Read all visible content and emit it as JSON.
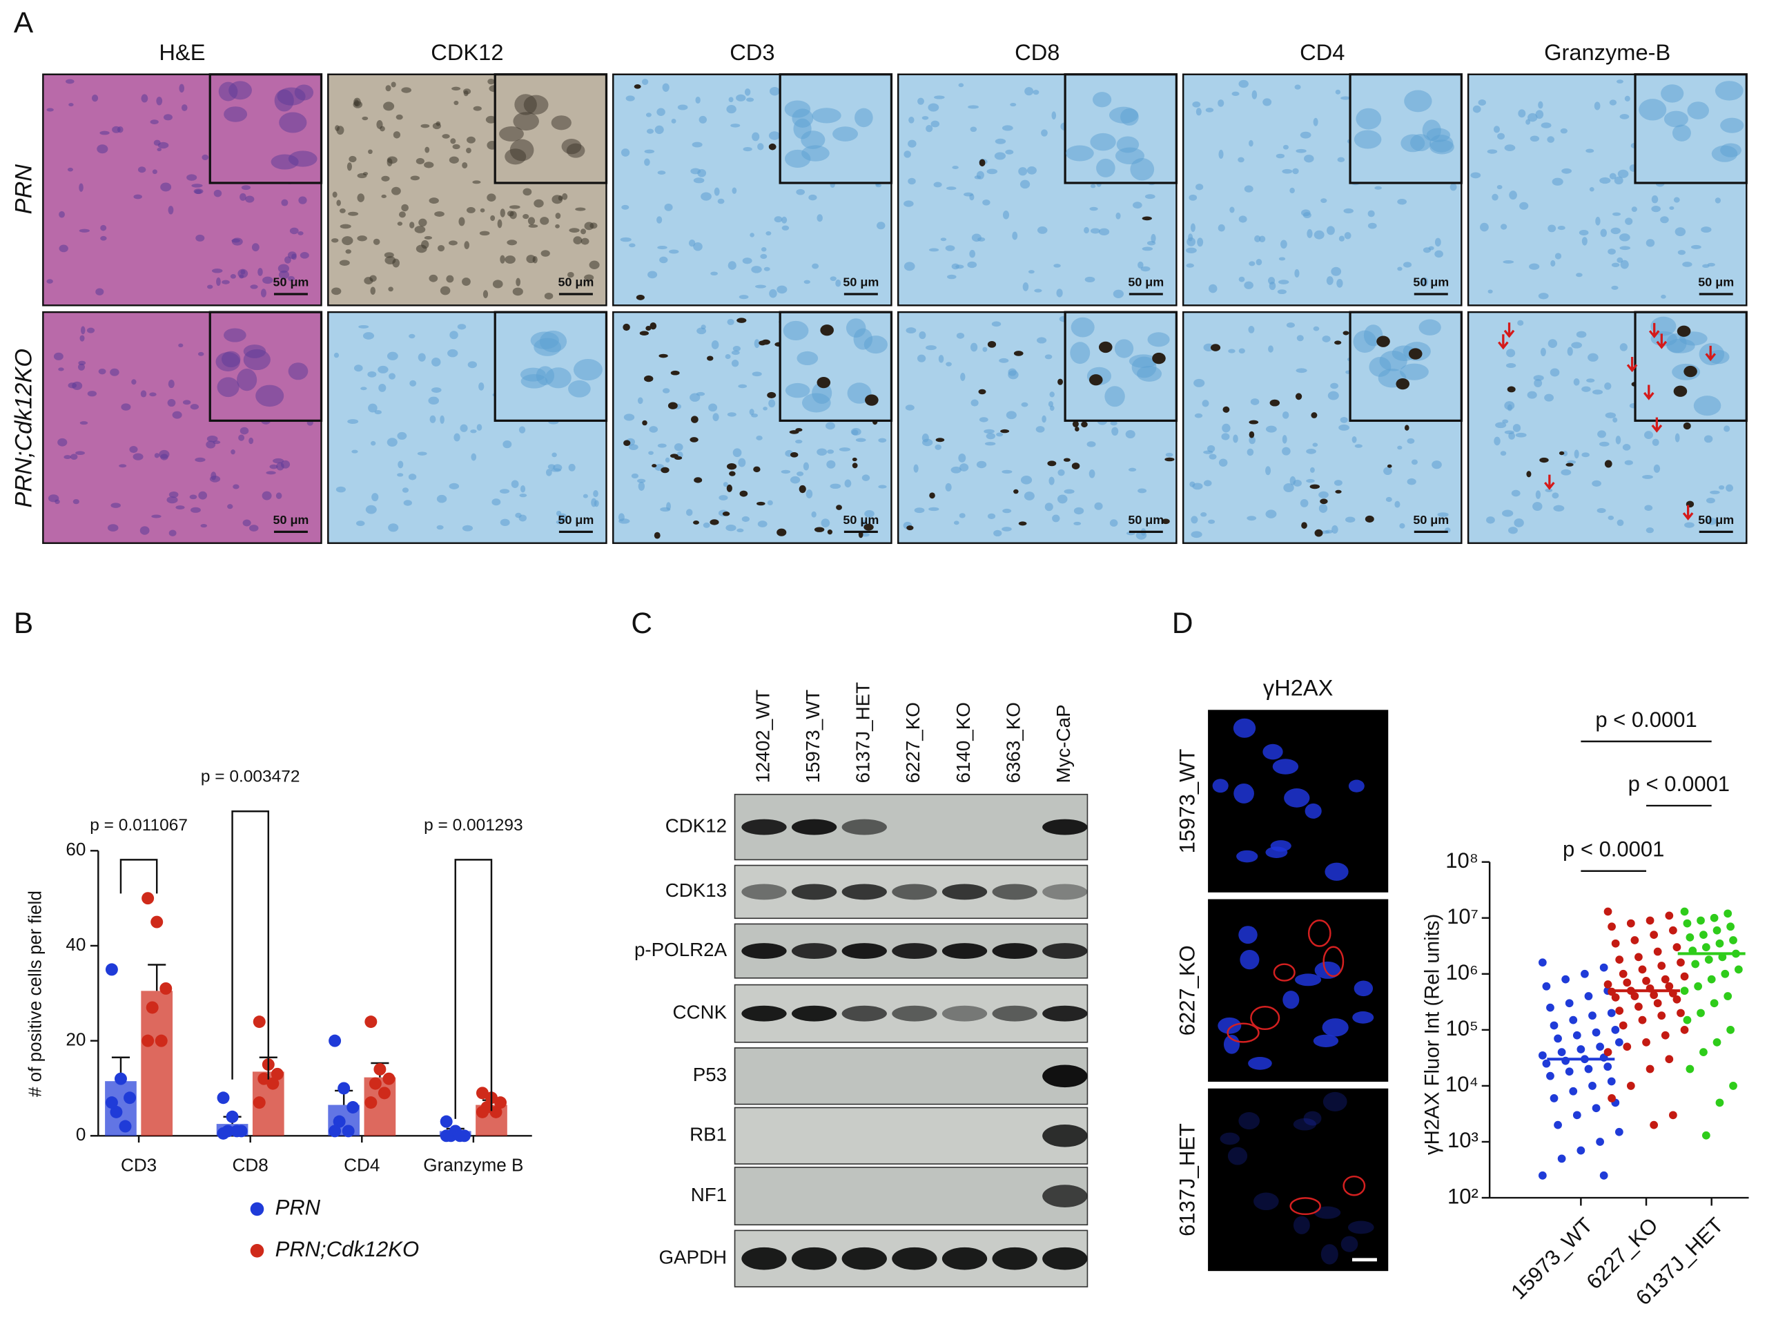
{
  "panel_labels": [
    "A",
    "B",
    "C",
    "D"
  ],
  "panel_a": {
    "columns": [
      "H&E",
      "CDK12",
      "CD3",
      "CD8",
      "CD4",
      "Granzyme-B"
    ],
    "rows": [
      "PRN",
      "PRN;Cdk12KO"
    ],
    "scale_bar": "50 μm"
  },
  "panel_c": {
    "lanes": [
      "12402_WT",
      "15973_WT",
      "6137J_HET",
      "6227_KO",
      "6140_KO",
      "6363_KO",
      "Myc-CaP"
    ],
    "lane_colors": [
      "#111111",
      "#111111",
      "#c00000",
      "#111111",
      "#111111",
      "#111111",
      "#111111"
    ],
    "proteins": [
      "CDK12",
      "CDK13",
      "p-POLR2A",
      "CCNK",
      "P53",
      "RB1",
      "NF1",
      "GAPDH"
    ]
  },
  "panel_d": {
    "title": "γH2AX",
    "rows": [
      "15973_WT",
      "6227_KO",
      "6137J_HET"
    ],
    "row_colors": [
      "#111111",
      "#111111",
      "#c00000"
    ]
  },
  "chart_data": [
    {
      "type": "bar",
      "ylabel": "# of positive cells per field",
      "categories": [
        "CD3",
        "CD8",
        "CD4",
        "Granzyme B"
      ],
      "ylim": [
        0,
        60
      ],
      "yticks": [
        0,
        20,
        40,
        60
      ],
      "series": [
        {
          "name": "PRN",
          "color": "#1f3bd8",
          "values": [
            11.5,
            2.5,
            6.5,
            1
          ],
          "errors": [
            5,
            1.5,
            3,
            0.5
          ],
          "points": [
            [
              35,
              12,
              8,
              5,
              2,
              7
            ],
            [
              8,
              4,
              1,
              1,
              1,
              0.5
            ],
            [
              20,
              10,
              6,
              3,
              1,
              1
            ],
            [
              3,
              1,
              0,
              0,
              0,
              0
            ]
          ]
        },
        {
          "name": "PRN;Cdk12KO",
          "color": "#cf2a1a",
          "values": [
            30.5,
            13.5,
            12.3,
            6.5
          ],
          "errors": [
            5.5,
            3,
            3,
            1
          ],
          "points": [
            [
              50,
              45,
              31,
              27,
              20,
              20
            ],
            [
              24,
              15,
              13,
              12,
              11,
              7
            ],
            [
              24,
              14,
              12,
              11,
              9,
              7
            ],
            [
              9,
              8,
              7,
              6,
              5,
              5
            ]
          ]
        }
      ],
      "annotations": [
        {
          "text": "p = 0.011067",
          "category": 0
        },
        {
          "text": "p = 0.003472",
          "category": 1
        },
        {
          "text": "p = 0.001293",
          "category": 3
        }
      ]
    },
    {
      "type": "scatter",
      "log_scale": true,
      "ylabel": "γH2AX  Fluor Int (Rel units)",
      "categories": [
        "15973_WT",
        "6227_KO",
        "6137J_HET"
      ],
      "category_colors": [
        "#111111",
        "#111111",
        "#c00000"
      ],
      "ylim": [
        100,
        100000000
      ],
      "yticks": [
        {
          "value": 100,
          "label": "10²"
        },
        {
          "value": 1000,
          "label": "10³"
        },
        {
          "value": 10000,
          "label": "10⁴"
        },
        {
          "value": 100000,
          "label": "10⁵"
        },
        {
          "value": 1000000,
          "label": "10⁶"
        },
        {
          "value": 10000000,
          "label": "10⁷"
        },
        {
          "value": 100000000,
          "label": "10⁸"
        }
      ],
      "series": [
        {
          "color": "#1f3bd8",
          "median": 30000,
          "values": [
            1600000,
            1300000,
            1000000,
            800000,
            600000,
            500000,
            400000,
            300000,
            250000,
            200000,
            180000,
            150000,
            120000,
            100000,
            90000,
            80000,
            70000,
            60000,
            50000,
            45000,
            40000,
            35000,
            32000,
            30000,
            28000,
            25000,
            22000,
            20000,
            18000,
            15000,
            12000,
            10000,
            8000,
            6000,
            5000,
            4000,
            3000,
            2000,
            1500,
            1000,
            700,
            500,
            250,
            250
          ]
        },
        {
          "color": "#c41a12",
          "median": 500000,
          "values": [
            13000000,
            11000000,
            9000000,
            8000000,
            7000000,
            6000000,
            5000000,
            4000000,
            3500000,
            3000000,
            2500000,
            2000000,
            1800000,
            1600000,
            1400000,
            1200000,
            1000000,
            900000,
            800000,
            750000,
            700000,
            650000,
            600000,
            550000,
            500000,
            480000,
            450000,
            420000,
            400000,
            380000,
            350000,
            300000,
            260000,
            220000,
            200000,
            180000,
            150000,
            120000,
            100000,
            80000,
            60000,
            50000,
            40000,
            30000,
            20000,
            10000,
            6000,
            3000,
            2000
          ]
        },
        {
          "color": "#2ecc1a",
          "median": 2300000,
          "values": [
            13000000,
            12000000,
            10000000,
            9000000,
            8000000,
            7000000,
            6000000,
            5000000,
            4500000,
            4000000,
            3500000,
            3000000,
            2600000,
            2300000,
            2000000,
            1800000,
            1500000,
            1200000,
            1000000,
            800000,
            600000,
            500000,
            400000,
            300000,
            200000,
            150000,
            100000,
            60000,
            40000,
            20000,
            10000,
            5000,
            1300
          ]
        }
      ],
      "annotations": [
        {
          "text": "p < 0.0001",
          "from": 0,
          "to": 2
        },
        {
          "text": "p < 0.0001",
          "from": 1,
          "to": 2
        },
        {
          "text": "p < 0.0001",
          "from": 0,
          "to": 1
        }
      ]
    }
  ]
}
